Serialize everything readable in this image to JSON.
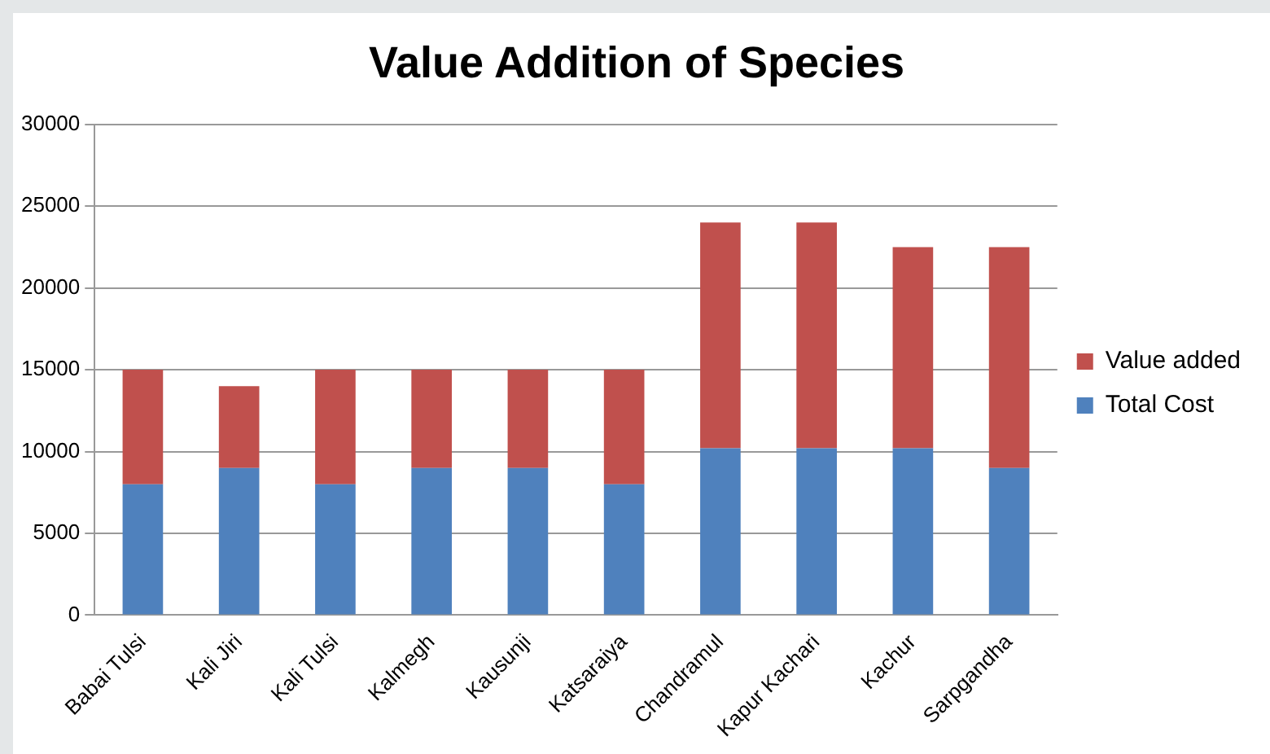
{
  "chart_data": {
    "type": "bar",
    "title": "Value Addition of Species",
    "categories": [
      "Babai Tulsi",
      "Kali Jiri",
      "Kali Tulsi",
      "Kalmegh",
      "Kausunji",
      "Katsaraiya",
      "Chandramul",
      "Kapur Kachari",
      "Kachur",
      "Sarpgandha"
    ],
    "series": [
      {
        "name": "Total Cost",
        "color": "#4f81bd",
        "values": [
          8000,
          9000,
          8000,
          9000,
          9000,
          8000,
          10200,
          10200,
          10200,
          9000
        ]
      },
      {
        "name": "Value added",
        "color": "#c0504d",
        "values": [
          7000,
          5000,
          7000,
          6000,
          6000,
          7000,
          13800,
          13800,
          12300,
          13500
        ]
      }
    ],
    "stacked": true,
    "ylim": [
      0,
      30000
    ],
    "yticks": [
      0,
      5000,
      10000,
      15000,
      20000,
      25000,
      30000
    ],
    "grid": "y",
    "legend": "right"
  }
}
